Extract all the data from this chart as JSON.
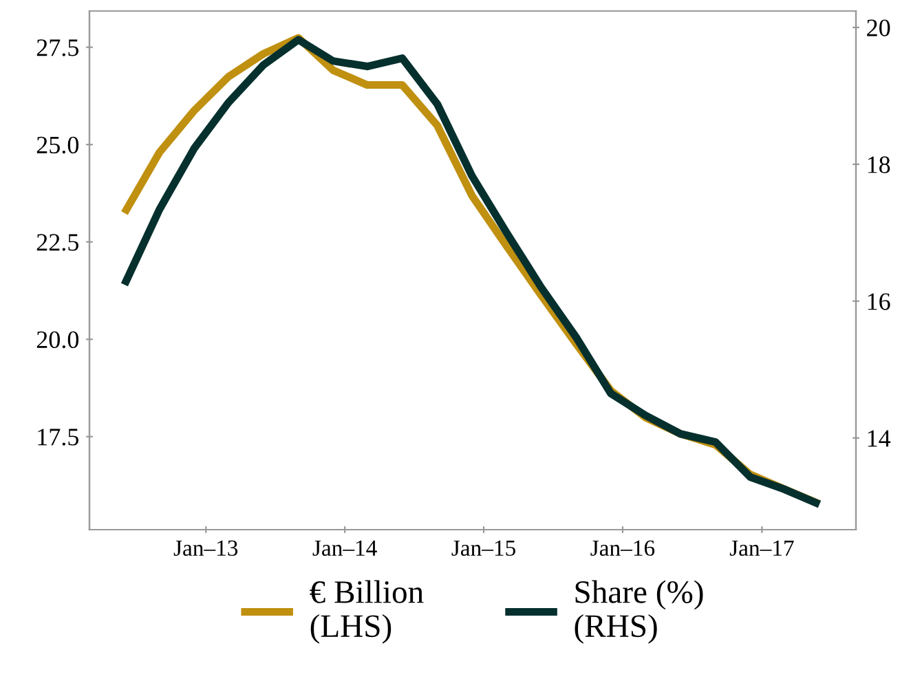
{
  "chart_data": {
    "type": "line",
    "x": [
      "2012-06",
      "2012-09",
      "2012-12",
      "2013-03",
      "2013-06",
      "2013-09",
      "2013-12",
      "2014-03",
      "2014-06",
      "2014-09",
      "2014-12",
      "2015-03",
      "2015-06",
      "2015-09",
      "2015-12",
      "2016-03",
      "2016-06",
      "2016-09",
      "2016-12",
      "2017-03",
      "2017-06"
    ],
    "series": [
      {
        "name": "€ Billion\n(LHS)",
        "color": "#c09010",
        "values": [
          23.24,
          24.8,
          25.87,
          26.74,
          27.33,
          27.74,
          26.91,
          26.53,
          26.53,
          25.49,
          23.69,
          22.41,
          21.13,
          19.88,
          18.68,
          17.99,
          17.57,
          17.29,
          16.53,
          16.15,
          15.77
        ]
      },
      {
        "name": "Share (%)\n(RHS)",
        "color": "#06302e",
        "axis": "y2",
        "values": [
          16.24,
          17.34,
          18.23,
          18.9,
          19.45,
          19.82,
          19.51,
          19.43,
          19.55,
          18.88,
          17.83,
          17.01,
          16.2,
          15.47,
          14.65,
          14.33,
          14.06,
          13.94,
          13.43,
          13.25,
          13.03
        ]
      }
    ],
    "xlim": [
      "2012-03-01",
      "2017-09-05"
    ],
    "xticks": [
      {
        "value": "2013-01",
        "label": "Jan–13"
      },
      {
        "value": "2014-01",
        "label": "Jan–14"
      },
      {
        "value": "2015-01",
        "label": "Jan–15"
      },
      {
        "value": "2016-01",
        "label": "Jan–16"
      },
      {
        "value": "2017-01",
        "label": "Jan–17"
      }
    ],
    "ylim": [
      15.11,
      28.43
    ],
    "yticks": [
      17.5,
      {
        "value": 20,
        "label": "20.0"
      },
      22.5,
      {
        "value": 25,
        "label": "25.0"
      },
      27.5
    ],
    "y2lim": [
      12.66,
      20.24
    ],
    "y2ticks": [
      14,
      16,
      18,
      20
    ],
    "grid": false,
    "legend": "bottom",
    "line_style": "solid",
    "marker": "none"
  }
}
